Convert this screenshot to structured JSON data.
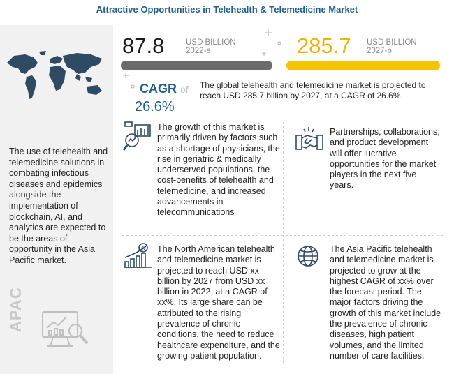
{
  "header": {
    "title": "Attractive Opportunities in Telehealth & Telemedicine Market"
  },
  "left_panel": {
    "text": "The use of telehealth and telemedicine solutions in combating infectious diseases and epidemics alongside the implementation of blockchain, AI, and analytics are expected to be the areas of opportunity in the Asia Pacific market.",
    "watermark": "APAC",
    "map_icon": "world-map-icon",
    "analytics_icon": "magnifier-chart-icon"
  },
  "stats": {
    "start": {
      "value": "87.8",
      "unit": "USD BILLION",
      "year": "2022-e",
      "bar_fill_pct": 100,
      "color": "#6b6b6b"
    },
    "end": {
      "value": "285.7",
      "unit": "USD BILLION",
      "year": "2027-p",
      "bar_fill_pct": 100,
      "color": "#f5c400"
    }
  },
  "cagr": {
    "label": "CAGR",
    "of": "of",
    "value": "26.6%",
    "summary": "The global telehealth and telemedicine market is projected to reach USD 285.7 billion by 2027, at a CAGR of 26.6%."
  },
  "blocks": [
    {
      "icon": "analysis-chart-icon",
      "text": "The growth of this market is primarily driven by factors such as a shortage of physicians, the rise in geriatric & medically underserved populations, the cost-benefits of telehealth and telemedicine, and increased advancements in telecommunications"
    },
    {
      "icon": "handshake-partnership-icon",
      "text": "Partnerships, collaborations, and product development will offer lucrative opportunities for the market players in the next five years."
    },
    {
      "icon": "growth-chart-dollar-icon",
      "text": "The North American telehealth and telemedicine market is projected to reach USD xx billion by 2027 from USD xx billion in 2022, at a CAGR of xx%. Its large share can be attributed to the rising prevalence of chronic conditions, the need to reduce healthcare expenditure, and the growing patient population."
    },
    {
      "icon": "globe-icon",
      "text": "The Asia Pacific telehealth and telemedicine market is projected to grow at the highest CAGR of xx% over the forecast period. The major factors driving the growth of this market include the prevalence of chronic diseases, high patient volumes, and the limited number of care facilities."
    }
  ]
}
